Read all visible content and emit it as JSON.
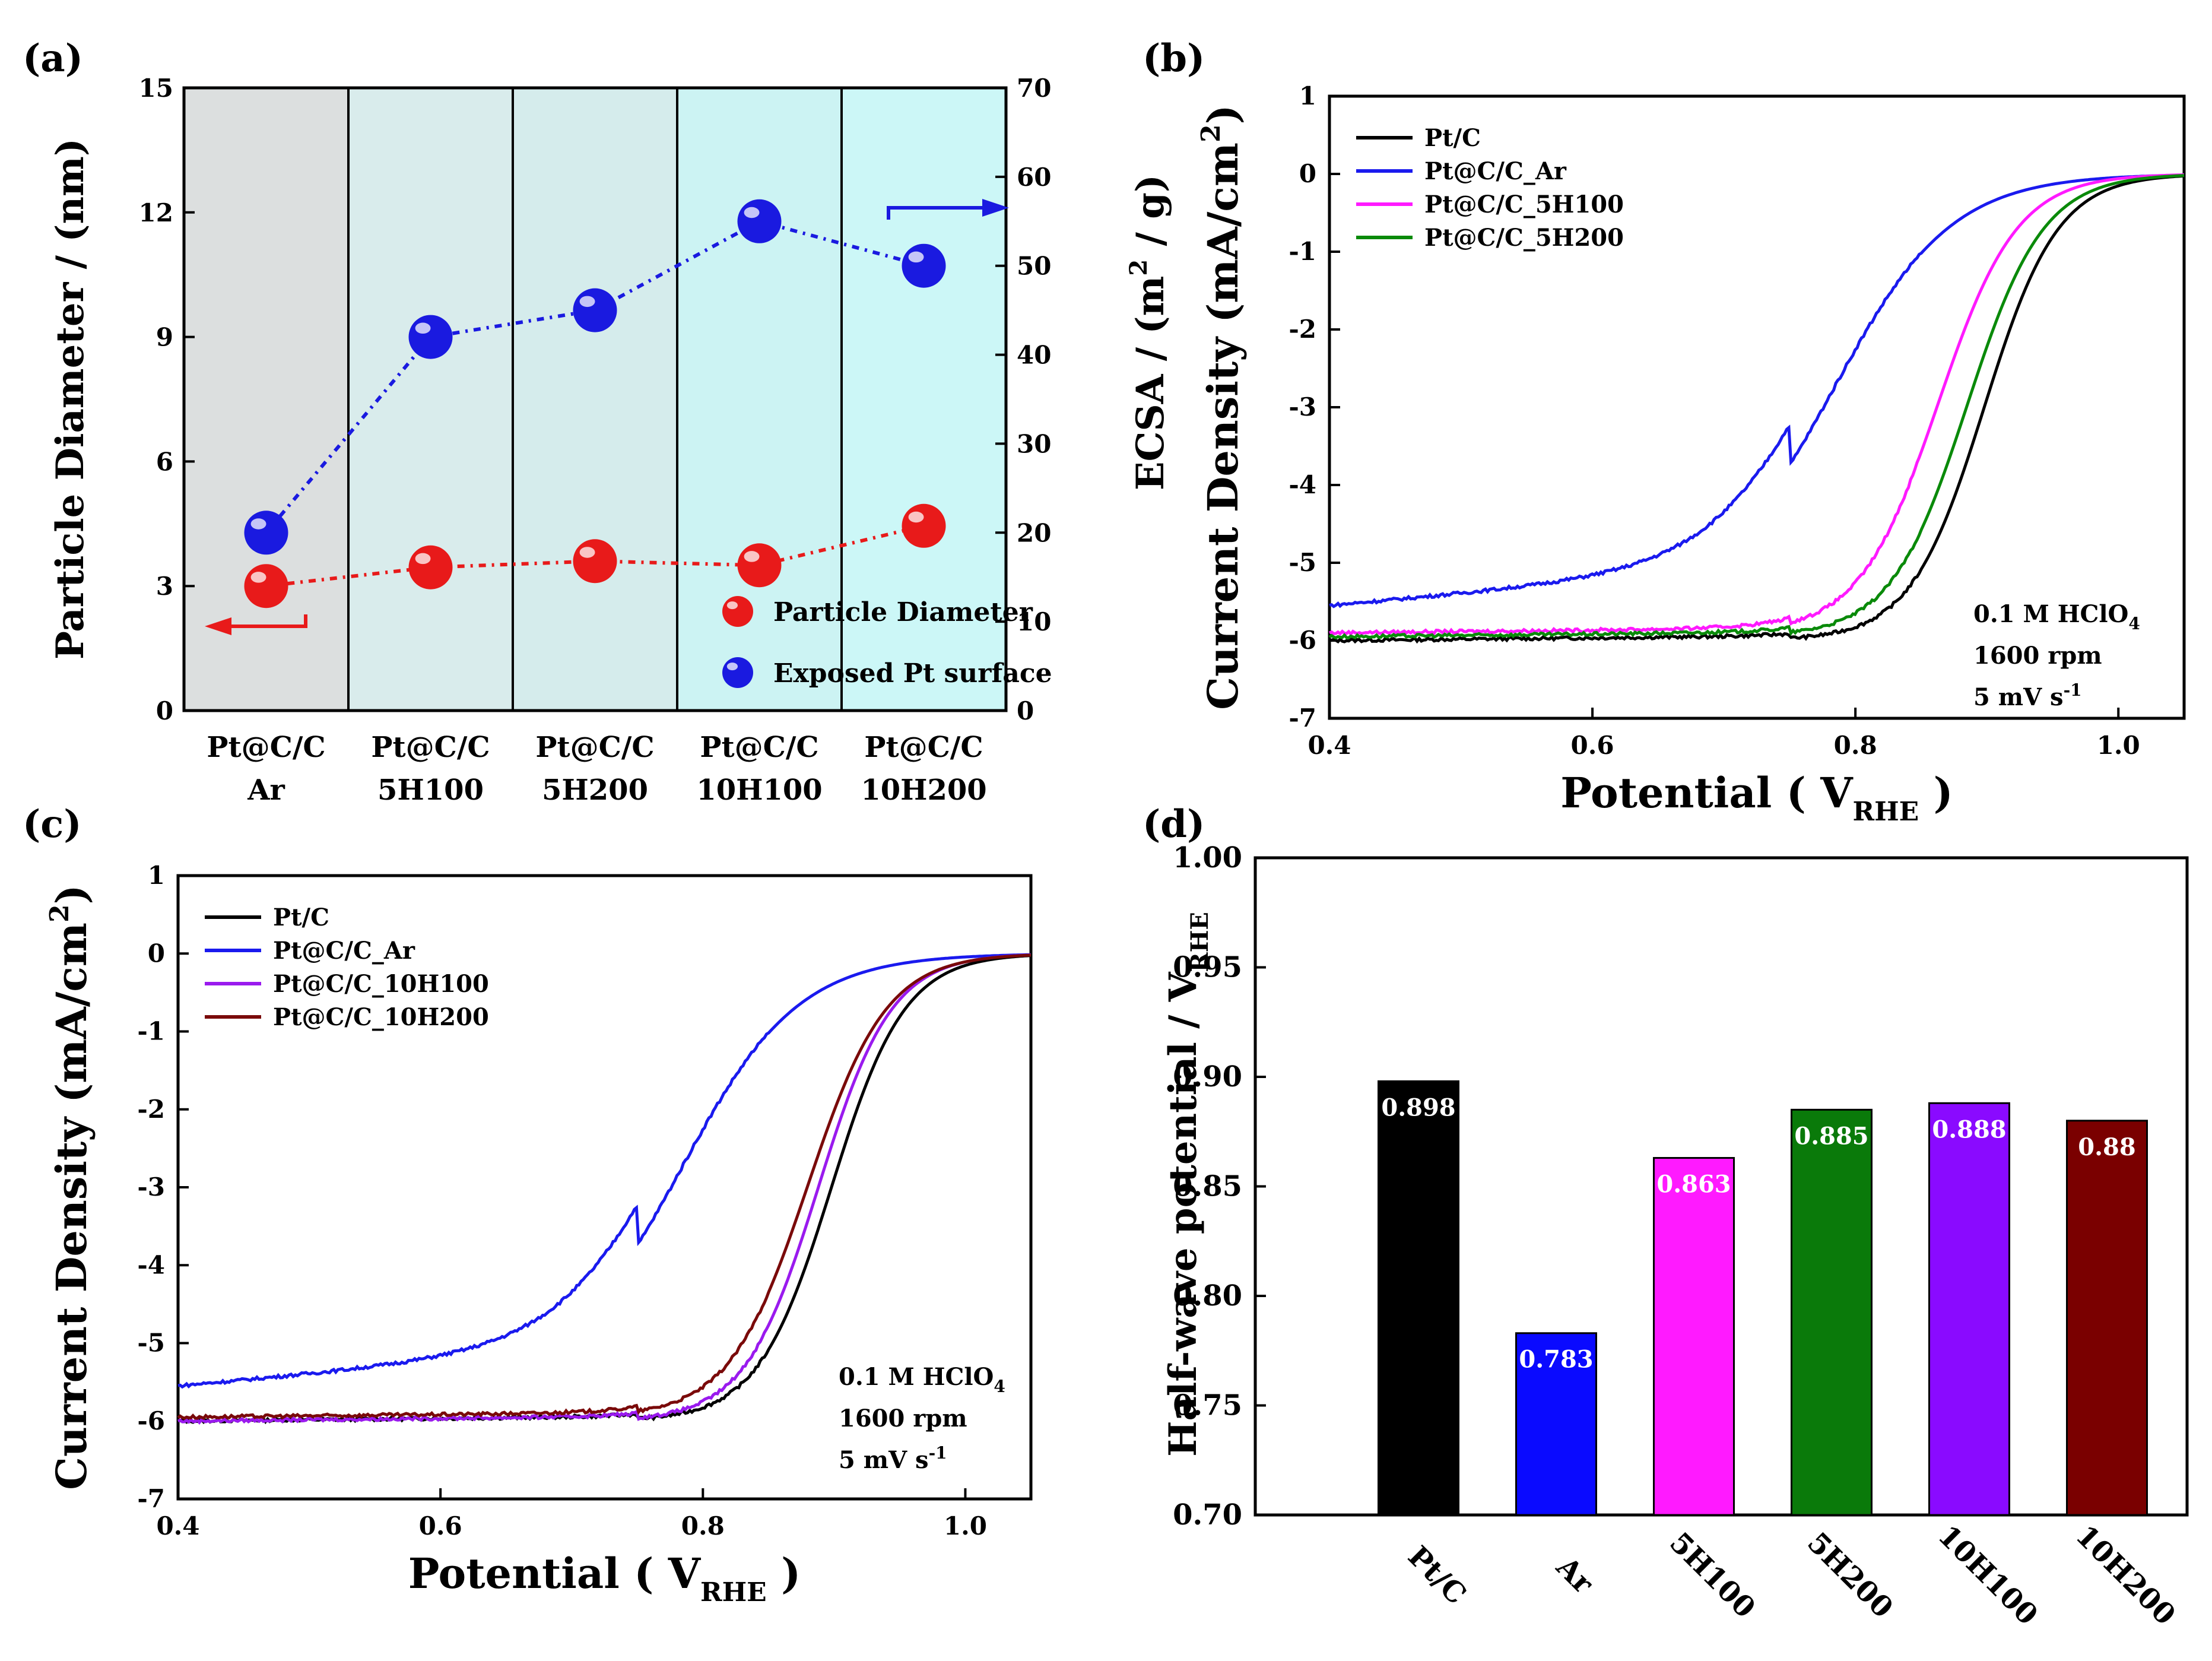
{
  "chart_data": [
    {
      "panel": "(a)",
      "type": "scatter",
      "categories": [
        "Pt@C/C\nAr",
        "Pt@C/C\n5H100",
        "Pt@C/C\n5H200",
        "Pt@C/C\n10H100",
        "Pt@C/C\n10H200"
      ],
      "ylabel": "Particle Diameter / (nm)",
      "y2label": "ECSA / (m^2 / g)",
      "ylim": [
        0,
        15
      ],
      "yticks": [
        0,
        3,
        6,
        9,
        12,
        15
      ],
      "y2lim": [
        0,
        70
      ],
      "y2ticks": [
        0,
        10,
        20,
        30,
        40,
        50,
        60,
        70
      ],
      "band_colors": [
        "#dcdfdf",
        "#d9ecec",
        "#d5ecec",
        "#ccf3f3",
        "#ccf7f7"
      ],
      "series": [
        {
          "name": "Particle Diameter",
          "axis": "left",
          "color": "#e81a1a",
          "values": [
            3.0,
            3.45,
            3.6,
            3.5,
            4.45
          ]
        },
        {
          "name": "Exposed Pt surface",
          "axis": "right",
          "color": "#1a1ae0",
          "values": [
            20,
            42,
            45,
            55,
            50
          ]
        }
      ]
    },
    {
      "panel": "(b)",
      "type": "line",
      "xlabel": "Potential ( V",
      "xlabel_sub": "RHE",
      "xlabel_end": ")",
      "ylabel": "Current Density (mA/cm",
      "ylabel_sup": "2",
      "ylabel_end": ")",
      "xlim": [
        0.4,
        1.05
      ],
      "xticks": [
        0.4,
        0.6,
        0.8,
        1.0
      ],
      "ylim": [
        -7,
        1
      ],
      "yticks": [
        1,
        0,
        -1,
        -2,
        -3,
        -4,
        -5,
        -6,
        -7
      ],
      "annotation": [
        "0.1 M HClO",
        "4",
        "1600 rpm",
        "5 mV s",
        "-1"
      ],
      "series": [
        {
          "name": "Pt/C",
          "color": "#000000",
          "e_half": 0.898,
          "plateau": -6.0,
          "width": 0.028
        },
        {
          "name": "Pt@C/C_Ar",
          "color": "#1a1aee",
          "e_half": 0.783,
          "plateau": -5.55,
          "width": 0.045
        },
        {
          "name": "Pt@C/C_5H100",
          "color": "#ff1aff",
          "e_half": 0.863,
          "plateau": -5.9,
          "width": 0.03
        },
        {
          "name": "Pt@C/C_5H200",
          "color": "#0a8a0a",
          "e_half": 0.885,
          "plateau": -5.95,
          "width": 0.029
        }
      ]
    },
    {
      "panel": "(c)",
      "type": "line",
      "xlabel": "Potential ( V",
      "xlabel_sub": "RHE",
      "xlabel_end": ")",
      "ylabel": "Current Density (mA/cm",
      "ylabel_sup": "2",
      "ylabel_end": ")",
      "xlim": [
        0.4,
        1.05
      ],
      "xticks": [
        0.4,
        0.6,
        0.8,
        1.0
      ],
      "ylim": [
        -7,
        1
      ],
      "yticks": [
        1,
        0,
        -1,
        -2,
        -3,
        -4,
        -5,
        -6,
        -7
      ],
      "annotation": [
        "0.1 M HClO",
        "4",
        "1600 rpm",
        "5 mV s",
        "-1"
      ],
      "series": [
        {
          "name": "Pt/C",
          "color": "#000000",
          "e_half": 0.898,
          "plateau": -6.0,
          "width": 0.028
        },
        {
          "name": "Pt@C/C_Ar",
          "color": "#1a1aee",
          "e_half": 0.783,
          "plateau": -5.55,
          "width": 0.045
        },
        {
          "name": "Pt@C/C_10H100",
          "color": "#9a1aee",
          "e_half": 0.888,
          "plateau": -6.0,
          "width": 0.028
        },
        {
          "name": "Pt@C/C_10H200",
          "color": "#7a0a0a",
          "e_half": 0.88,
          "plateau": -5.95,
          "width": 0.03
        }
      ]
    },
    {
      "panel": "(d)",
      "type": "bar",
      "ylabel": "Half-wave potential / V",
      "ylabel_sub": "RHE",
      "ylim": [
        0.7,
        1.0
      ],
      "yticks": [
        "0.70",
        "0.75",
        "0.80",
        "0.85",
        "0.90",
        "0.95",
        "1.00"
      ],
      "categories": [
        "Pt/C",
        "Ar",
        "5H100",
        "5H200",
        "10H100",
        "10H200"
      ],
      "values": [
        0.898,
        0.783,
        0.863,
        0.885,
        0.888,
        0.88
      ],
      "labels": [
        "0.898",
        "0.783",
        "0.863",
        "0.885",
        "0.888",
        "0.88"
      ],
      "colors": [
        "#000000",
        "#0a0aff",
        "#ff1aff",
        "#0a7a0a",
        "#8a0aff",
        "#7a0000"
      ]
    }
  ]
}
